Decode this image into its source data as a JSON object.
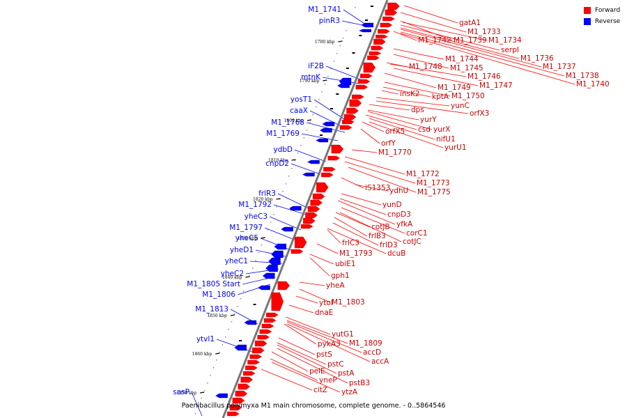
{
  "caption": "Paenibacillus polymyxa M1 main chromosome, complete genome. - 0..5864546",
  "legend": {
    "forward": {
      "label": "Forward",
      "color": "#ff0000"
    },
    "reverse": {
      "label": "Reverse",
      "color": "#0000ff"
    }
  },
  "ticks": [
    "1780 kbp",
    "1790 kbp",
    "1800 kbp",
    "1810 kbp",
    "1820 kbp",
    "1830 kbp",
    "1840 kbp",
    "1850 kbp",
    "1860 kbp",
    "1870 kbp"
  ],
  "reverse_labels": [
    "M1_1741",
    "pinR3",
    "iF2B",
    "mtnK",
    "yosT1",
    "caaX",
    "M1_1768",
    "M1_1769",
    "ydbD",
    "cnpD2",
    "frlR3",
    "M1_1792",
    "yheC3",
    "M1_1797",
    "yheC5",
    "yheD1",
    "yheC1",
    "yheC2",
    "M1_1805 Start",
    "M1_1806",
    "M1_1813",
    "ytvl1",
    "sasP"
  ],
  "forward_labels": [
    "gatA1",
    "M1_1733",
    "M1_1742",
    "M1_1739",
    "M1_1734",
    "serpI",
    "M1_1736",
    "M1_1737",
    "M1_1738",
    "M1_1740",
    "M1_1744",
    "M1_1748",
    "M1_1745",
    "M1_1746",
    "M1_1749",
    "M1_1747",
    "kptA",
    "M1_1750",
    "insK2",
    "yunC",
    "orfX3",
    "dps",
    "yurY",
    "csd",
    "yurX",
    "orfX5",
    "nifU1",
    "orfY",
    "yurU1",
    "M1_1770",
    "M1_1772",
    "M1_1773",
    "iS1353",
    "ydhU",
    "M1_1775",
    "yunD",
    "cnpD3",
    "yfkA",
    "cotJB",
    "corC1",
    "frlB3",
    "cotJC",
    "frlD3",
    "frlC3",
    "M1_1793",
    "dcuB",
    "ubiE1",
    "gph1",
    "yheA",
    "ytoI",
    "M1_1803",
    "dnaE",
    "yutG1",
    "pykA3",
    "M1_1809",
    "accD",
    "accA",
    "pstS",
    "pstC",
    "pstA",
    "pelE",
    "pstB3",
    "yneP",
    "citZ",
    "ytzA"
  ]
}
